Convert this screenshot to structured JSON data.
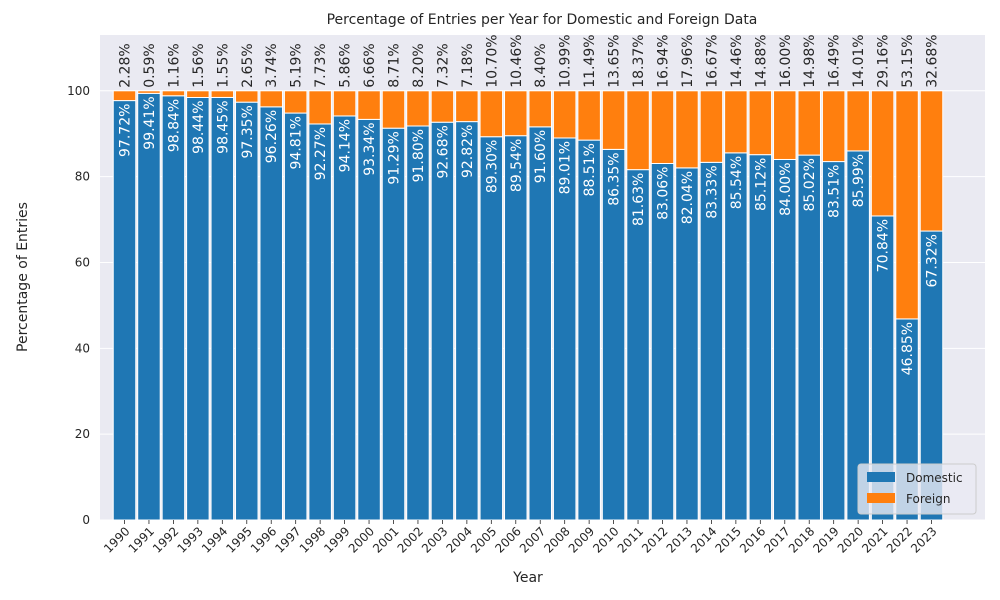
{
  "chart_data": {
    "type": "bar",
    "stacked": true,
    "title": "Percentage of Entries per Year for Domestic and Foreign Data",
    "xlabel": "Year",
    "ylabel": "Percentage of Entries",
    "ylim": [
      0,
      113
    ],
    "yticks": [
      0,
      20,
      40,
      60,
      80,
      100
    ],
    "grid": true,
    "legend_position": "bottom-right",
    "categories": [
      "1990",
      "1991",
      "1992",
      "1993",
      "1994",
      "1995",
      "1996",
      "1997",
      "1998",
      "1999",
      "2000",
      "2001",
      "2002",
      "2003",
      "2004",
      "2005",
      "2006",
      "2007",
      "2008",
      "2009",
      "2010",
      "2011",
      "2012",
      "2013",
      "2014",
      "2015",
      "2016",
      "2017",
      "2018",
      "2019",
      "2020",
      "2021",
      "2022",
      "2023"
    ],
    "series": [
      {
        "name": "Domestic",
        "color": "#1f77b4",
        "values": [
          97.72,
          99.41,
          98.84,
          98.44,
          98.45,
          97.35,
          96.26,
          94.81,
          92.27,
          94.14,
          93.34,
          91.29,
          91.8,
          92.68,
          92.82,
          89.3,
          89.54,
          91.6,
          89.01,
          88.51,
          86.35,
          81.63,
          83.06,
          82.04,
          83.33,
          85.54,
          85.12,
          84.0,
          85.02,
          83.51,
          85.99,
          70.84,
          46.85,
          67.32
        ],
        "labels": [
          "97.72%",
          "99.41%",
          "98.84%",
          "98.44%",
          "98.45%",
          "97.35%",
          "96.26%",
          "94.81%",
          "92.27%",
          "94.14%",
          "93.34%",
          "91.29%",
          "91.80%",
          "92.68%",
          "92.82%",
          "89.30%",
          "89.54%",
          "91.60%",
          "89.01%",
          "88.51%",
          "86.35%",
          "81.63%",
          "83.06%",
          "82.04%",
          "83.33%",
          "85.54%",
          "85.12%",
          "84.00%",
          "85.02%",
          "83.51%",
          "85.99%",
          "70.84%",
          "46.85%",
          "67.32%"
        ]
      },
      {
        "name": "Foreign",
        "color": "#ff7f0e",
        "values": [
          2.28,
          0.59,
          1.16,
          1.56,
          1.55,
          2.65,
          3.74,
          5.19,
          7.73,
          5.86,
          6.66,
          8.71,
          8.2,
          7.32,
          7.18,
          10.7,
          10.46,
          8.4,
          10.99,
          11.49,
          13.65,
          18.37,
          16.94,
          17.96,
          16.67,
          14.46,
          14.88,
          16.0,
          14.98,
          16.49,
          14.01,
          29.16,
          53.15,
          32.68
        ],
        "labels": [
          "2.28%",
          "0.59%",
          "1.16%",
          "1.56%",
          "1.55%",
          "2.65%",
          "3.74%",
          "5.19%",
          "7.73%",
          "5.86%",
          "6.66%",
          "8.71%",
          "8.20%",
          "7.32%",
          "7.18%",
          "10.70%",
          "10.46%",
          "8.40%",
          "10.99%",
          "11.49%",
          "13.65%",
          "18.37%",
          "16.94%",
          "17.96%",
          "16.67%",
          "14.46%",
          "14.88%",
          "16.00%",
          "14.98%",
          "16.49%",
          "14.01%",
          "29.16%",
          "53.15%",
          "32.68%"
        ]
      }
    ]
  }
}
